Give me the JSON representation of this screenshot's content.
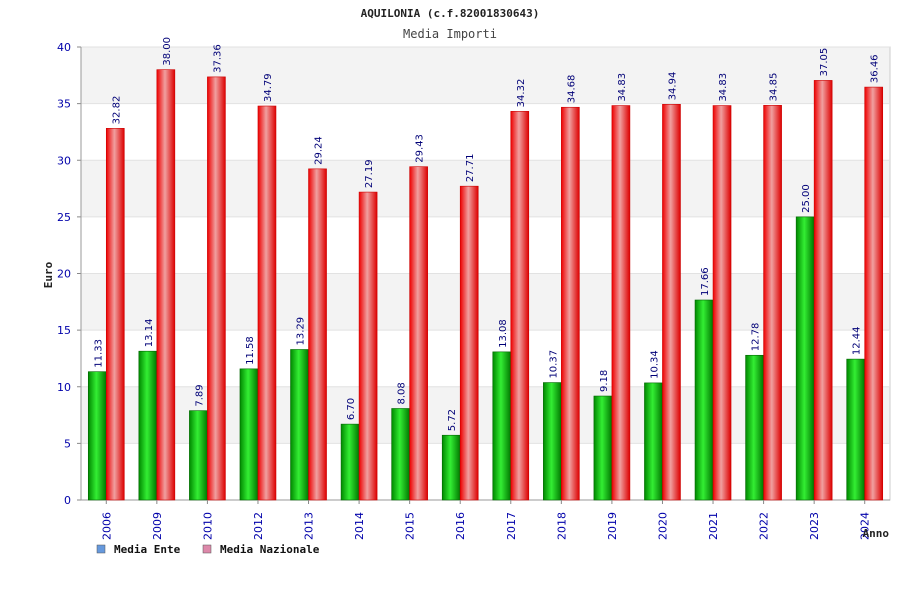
{
  "chart_data": {
    "type": "bar",
    "title": "AQUILONIA (c.f.82001830643)",
    "subtitle": "Media Importi",
    "ylabel": "Euro",
    "xlabel": "Anno",
    "ylim": [
      0,
      40
    ],
    "yticks": [
      0,
      5,
      10,
      15,
      20,
      25,
      30,
      35,
      40
    ],
    "grid": true,
    "legend_position": "bottom-left",
    "categories": [
      "2006",
      "2009",
      "2010",
      "2012",
      "2013",
      "2014",
      "2015",
      "2016",
      "2017",
      "2018",
      "2019",
      "2020",
      "2021",
      "2022",
      "2023",
      "2024"
    ],
    "series": [
      {
        "name": "Media Ente",
        "legend_color": "#6699dd",
        "bar_color": "#00bb00",
        "values": [
          11.33,
          13.14,
          7.89,
          11.58,
          13.29,
          6.7,
          8.08,
          5.72,
          13.08,
          10.37,
          9.18,
          10.34,
          17.66,
          12.78,
          25.0,
          12.44
        ],
        "labels": [
          "11.33",
          "13.14",
          "7.89",
          "11.58",
          "13.29",
          "6.70",
          "8.08",
          "5.72",
          "13.08",
          "10.37",
          "9.18",
          "10.34",
          "17.66",
          "12.78",
          "25.00",
          "12.44"
        ]
      },
      {
        "name": "Media Nazionale",
        "legend_color": "#dd88aa",
        "bar_color": "#ee1111",
        "values": [
          32.82,
          38.0,
          37.36,
          34.79,
          29.24,
          27.19,
          29.43,
          27.71,
          34.32,
          34.68,
          34.83,
          34.94,
          34.83,
          34.85,
          37.05,
          36.46
        ],
        "labels": [
          "32.82",
          "38.00",
          "37.36",
          "34.79",
          "29.24",
          "27.19",
          "29.43",
          "27.71",
          "34.32",
          "34.68",
          "34.83",
          "34.94",
          "34.83",
          "34.85",
          "37.05",
          "36.46"
        ]
      }
    ]
  }
}
